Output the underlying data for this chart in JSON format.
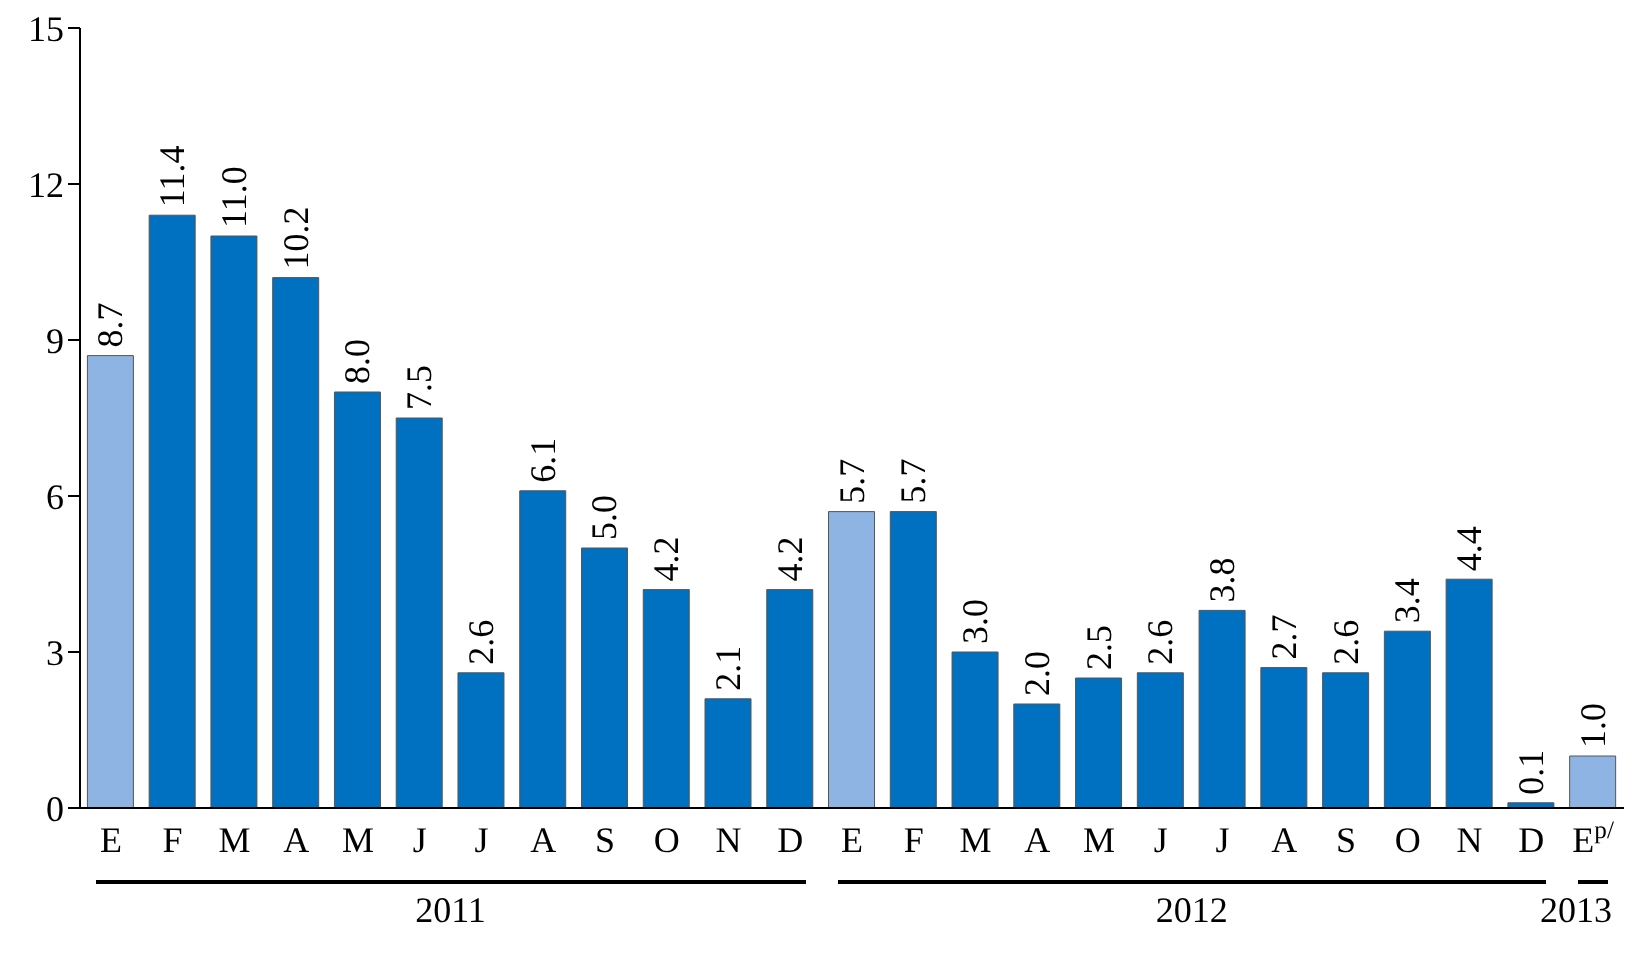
{
  "chart_data": {
    "type": "bar",
    "categories": [
      "E",
      "F",
      "M",
      "A",
      "M",
      "J",
      "J",
      "A",
      "S",
      "O",
      "N",
      "D",
      "E",
      "F",
      "M",
      "A",
      "M",
      "J",
      "J",
      "A",
      "S",
      "O",
      "N",
      "D",
      "E$^{p/}$"
    ],
    "values": [
      8.7,
      11.4,
      11.0,
      10.2,
      8.0,
      7.5,
      2.6,
      6.1,
      5.0,
      4.2,
      2.1,
      4.2,
      5.7,
      5.7,
      3.0,
      2.0,
      2.5,
      2.6,
      3.8,
      2.7,
      2.6,
      3.4,
      4.4,
      0.1,
      1.0
    ],
    "value_labels": [
      "8.7",
      "11.4",
      "11.0",
      "10.2",
      "8.0",
      "7.5",
      "2.6",
      "6.1",
      "5.0",
      "4.2",
      "2.1",
      "4.2",
      "5.7",
      "5.7",
      "3.0",
      "2.0",
      "2.5",
      "2.6",
      "3.8",
      "2.7",
      "2.6",
      "3.4",
      "4.4",
      "0.1",
      "1.0"
    ],
    "colors": [
      "#8db4e2",
      "#0070c0",
      "#0070c0",
      "#0070c0",
      "#0070c0",
      "#0070c0",
      "#0070c0",
      "#0070c0",
      "#0070c0",
      "#0070c0",
      "#0070c0",
      "#0070c0",
      "#8db4e2",
      "#0070c0",
      "#0070c0",
      "#0070c0",
      "#0070c0",
      "#0070c0",
      "#0070c0",
      "#0070c0",
      "#0070c0",
      "#0070c0",
      "#0070c0",
      "#0070c0",
      "#8db4e2"
    ],
    "ylim": [
      0,
      15
    ],
    "yticks": [
      0,
      3,
      6,
      9,
      12,
      15
    ],
    "grid": false,
    "legend": false,
    "annotations": [
      "2011",
      "2012",
      "2013"
    ]
  }
}
